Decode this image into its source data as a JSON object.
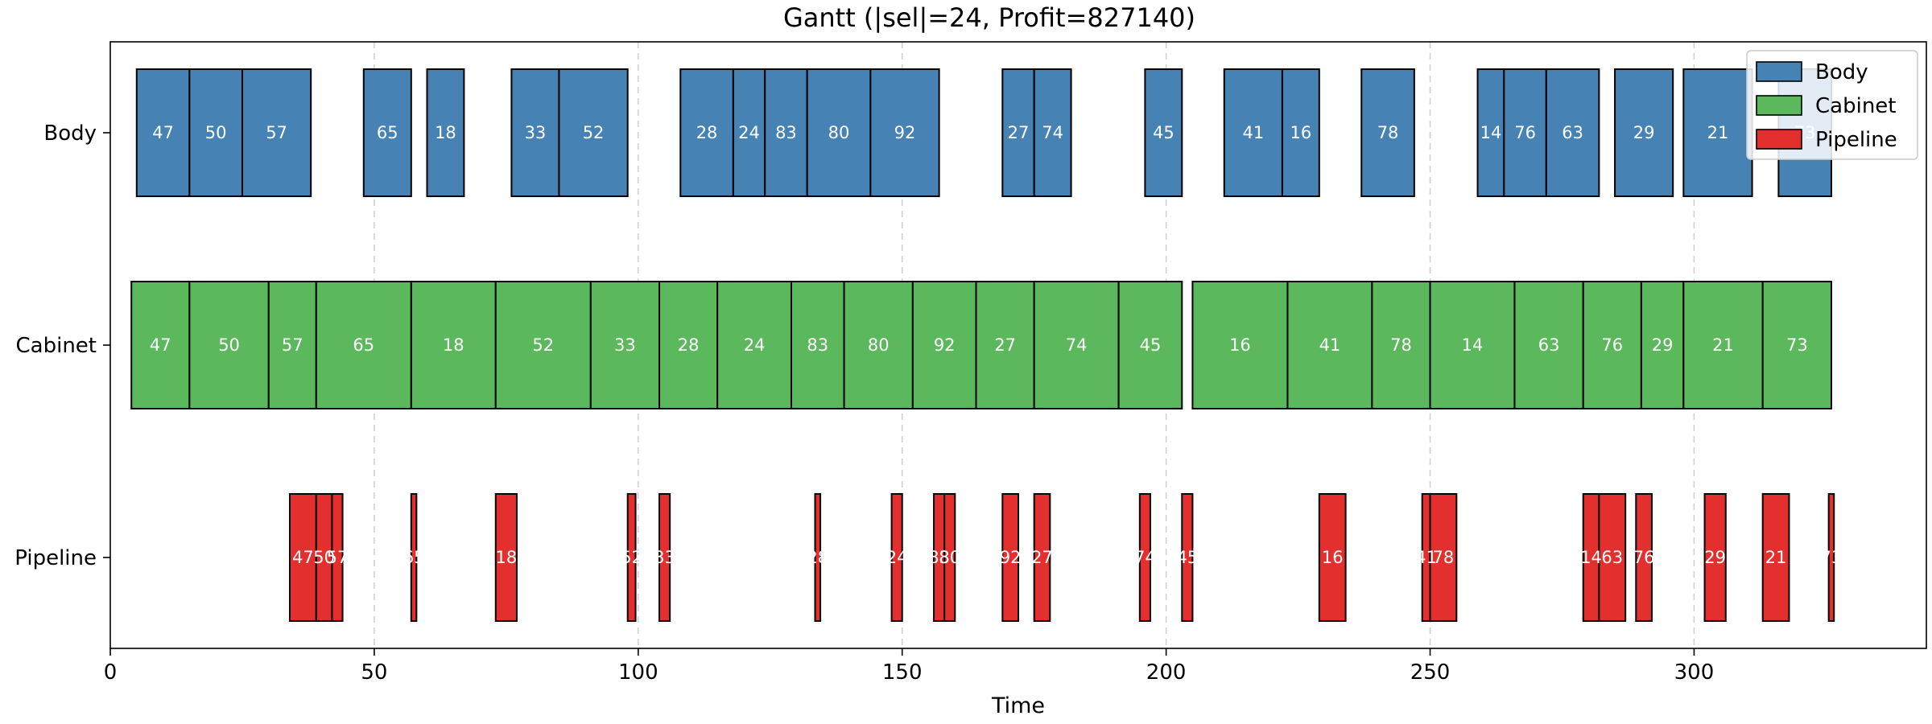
{
  "chart_data": {
    "type": "gantt",
    "title": "Gantt (|sel|=24, Profit=827140)",
    "xlabel": "Time",
    "ylabel": "",
    "xlim": [
      0,
      344
    ],
    "xticks": [
      0,
      50,
      100,
      150,
      200,
      250,
      300
    ],
    "grid": "vertical dashed at x ticks",
    "legend_position": "top-right",
    "rows": [
      "Body",
      "Cabinet",
      "Pipeline"
    ],
    "colors": {
      "Body": "#4682b4",
      "Cabinet": "#5cb85c",
      "Pipeline": "#e3302f"
    },
    "legend": [
      {
        "label": "Body",
        "color": "#4682b4"
      },
      {
        "label": "Cabinet",
        "color": "#5cb85c"
      },
      {
        "label": "Pipeline",
        "color": "#e3302f"
      }
    ],
    "tasks": {
      "Body": [
        {
          "job": "47",
          "start": 5,
          "end": 15
        },
        {
          "job": "50",
          "start": 15,
          "end": 25
        },
        {
          "job": "57",
          "start": 25,
          "end": 38
        },
        {
          "job": "65",
          "start": 48,
          "end": 57
        },
        {
          "job": "18",
          "start": 60,
          "end": 67
        },
        {
          "job": "33",
          "start": 76,
          "end": 85
        },
        {
          "job": "52",
          "start": 85,
          "end": 98
        },
        {
          "job": "28",
          "start": 108,
          "end": 118
        },
        {
          "job": "24",
          "start": 118,
          "end": 124
        },
        {
          "job": "83",
          "start": 124,
          "end": 132
        },
        {
          "job": "80",
          "start": 132,
          "end": 144
        },
        {
          "job": "92",
          "start": 144,
          "end": 157
        },
        {
          "job": "27",
          "start": 169,
          "end": 175
        },
        {
          "job": "74",
          "start": 175,
          "end": 182
        },
        {
          "job": "45",
          "start": 196,
          "end": 203
        },
        {
          "job": "41",
          "start": 211,
          "end": 222
        },
        {
          "job": "16",
          "start": 222,
          "end": 229
        },
        {
          "job": "78",
          "start": 237,
          "end": 247
        },
        {
          "job": "14",
          "start": 259,
          "end": 264
        },
        {
          "job": "76",
          "start": 264,
          "end": 272
        },
        {
          "job": "63",
          "start": 272,
          "end": 282
        },
        {
          "job": "29",
          "start": 285,
          "end": 296
        },
        {
          "job": "21",
          "start": 298,
          "end": 311
        },
        {
          "job": "73",
          "start": 316,
          "end": 326
        }
      ],
      "Cabinet": [
        {
          "job": "47",
          "start": 4,
          "end": 15
        },
        {
          "job": "50",
          "start": 15,
          "end": 30
        },
        {
          "job": "57",
          "start": 30,
          "end": 39
        },
        {
          "job": "65",
          "start": 39,
          "end": 57
        },
        {
          "job": "18",
          "start": 57,
          "end": 73
        },
        {
          "job": "52",
          "start": 73,
          "end": 91
        },
        {
          "job": "33",
          "start": 91,
          "end": 104
        },
        {
          "job": "28",
          "start": 104,
          "end": 115
        },
        {
          "job": "24",
          "start": 115,
          "end": 129
        },
        {
          "job": "83",
          "start": 129,
          "end": 139
        },
        {
          "job": "80",
          "start": 139,
          "end": 152
        },
        {
          "job": "92",
          "start": 152,
          "end": 164
        },
        {
          "job": "27",
          "start": 164,
          "end": 175
        },
        {
          "job": "74",
          "start": 175,
          "end": 191
        },
        {
          "job": "45",
          "start": 191,
          "end": 203
        },
        {
          "job": "16",
          "start": 205,
          "end": 223
        },
        {
          "job": "41",
          "start": 223,
          "end": 239
        },
        {
          "job": "78",
          "start": 239,
          "end": 250
        },
        {
          "job": "14",
          "start": 250,
          "end": 266
        },
        {
          "job": "63",
          "start": 266,
          "end": 279
        },
        {
          "job": "76",
          "start": 279,
          "end": 290
        },
        {
          "job": "29",
          "start": 290,
          "end": 298
        },
        {
          "job": "21",
          "start": 298,
          "end": 313
        },
        {
          "job": "73",
          "start": 313,
          "end": 326
        }
      ],
      "Pipeline": [
        {
          "job": "47",
          "start": 34,
          "end": 39
        },
        {
          "job": "50",
          "start": 39,
          "end": 42
        },
        {
          "job": "57",
          "start": 42,
          "end": 44
        },
        {
          "job": "65",
          "start": 57,
          "end": 58
        },
        {
          "job": "18",
          "start": 73,
          "end": 77
        },
        {
          "job": "52",
          "start": 98,
          "end": 99.5
        },
        {
          "job": "33",
          "start": 104,
          "end": 106
        },
        {
          "job": "28",
          "start": 133.5,
          "end": 134.5
        },
        {
          "job": "24",
          "start": 148,
          "end": 150
        },
        {
          "job": "83",
          "start": 156,
          "end": 158
        },
        {
          "job": "80",
          "start": 158,
          "end": 160
        },
        {
          "job": "92",
          "start": 169,
          "end": 172
        },
        {
          "job": "27",
          "start": 175,
          "end": 178
        },
        {
          "job": "74",
          "start": 195,
          "end": 197
        },
        {
          "job": "45",
          "start": 203,
          "end": 205
        },
        {
          "job": "16",
          "start": 229,
          "end": 234
        },
        {
          "job": "41",
          "start": 248.5,
          "end": 250
        },
        {
          "job": "78",
          "start": 250,
          "end": 255
        },
        {
          "job": "14",
          "start": 279,
          "end": 282
        },
        {
          "job": "63",
          "start": 282,
          "end": 287
        },
        {
          "job": "76",
          "start": 289,
          "end": 292
        },
        {
          "job": "29",
          "start": 302,
          "end": 306
        },
        {
          "job": "21",
          "start": 313,
          "end": 318
        },
        {
          "job": "73",
          "start": 325.5,
          "end": 326.5
        }
      ]
    }
  }
}
